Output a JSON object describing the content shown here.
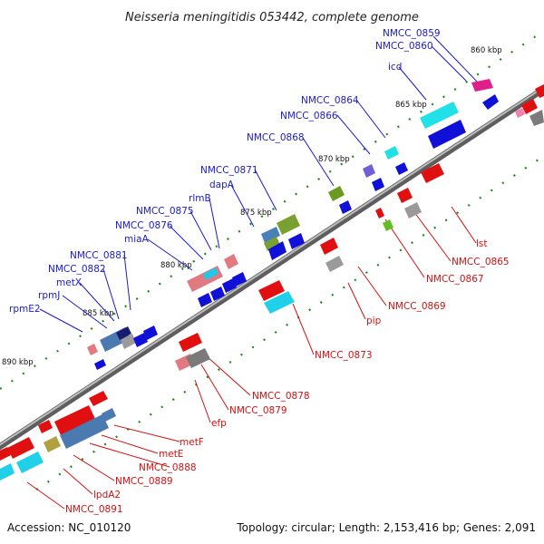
{
  "title": "Neisseria meningitidis 053442, complete genome",
  "footer": {
    "accession": "Accession: NC_010120",
    "summary": "Topology: circular; Length: 2,153,416 bp; Genes: 2,091"
  },
  "colors": {
    "forward_label": "#1a1ad0",
    "reverse_label": "#d61010",
    "backbone": "#8a8a8a",
    "tick": "#1a8a1a"
  },
  "kbp_marks": [
    "860 kbp",
    "865 kbp",
    "870 kbp",
    "875 kbp",
    "880 kbp",
    "885 kbp",
    "890 kbp"
  ],
  "top_labels": [
    "NMCC_0859",
    "NMCC_0860",
    "icd",
    "NMCC_0864",
    "NMCC_0866",
    "NMCC_0868",
    "NMCC_0871",
    "dapA",
    "rlmB",
    "NMCC_0875",
    "NMCC_0876",
    "miaA",
    "NMCC_0881",
    "NMCC_0882",
    "metX",
    "rpmJ",
    "rpmE2"
  ],
  "bottom_labels": [
    "lst",
    "NMCC_0865",
    "NMCC_0867",
    "NMCC_0869",
    "pip",
    "NMCC_0873",
    "NMCC_0878",
    "NMCC_0879",
    "efp",
    "metF",
    "metE",
    "NMCC_0888",
    "NMCC_0889",
    "lpdA2",
    "NMCC_0891"
  ]
}
